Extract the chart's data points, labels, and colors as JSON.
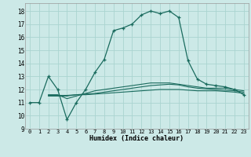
{
  "xlabel": "Humidex (Indice chaleur)",
  "xlim": [
    -0.5,
    23.5
  ],
  "ylim": [
    9,
    18.6
  ],
  "yticks": [
    9,
    10,
    11,
    12,
    13,
    14,
    15,
    16,
    17,
    18
  ],
  "xticks": [
    0,
    1,
    2,
    3,
    4,
    5,
    6,
    7,
    8,
    9,
    10,
    11,
    12,
    13,
    14,
    15,
    16,
    17,
    18,
    19,
    20,
    21,
    22,
    23
  ],
  "bg_color": "#cce9e7",
  "grid_color": "#aad4d0",
  "line_color": "#1a6b5e",
  "line1_x": [
    0,
    1,
    2,
    3,
    4,
    5,
    6,
    7,
    8,
    9,
    10,
    11,
    12,
    13,
    14,
    15,
    16,
    17,
    18,
    19,
    20,
    21,
    22,
    23
  ],
  "line1_y": [
    11,
    11,
    13,
    12,
    9.7,
    11,
    12,
    13.3,
    14.3,
    16.5,
    16.7,
    17,
    17.7,
    18,
    17.8,
    18,
    17.5,
    14.2,
    12.8,
    12.4,
    12.3,
    12.2,
    12.0,
    11.6
  ],
  "line2_x": [
    2,
    3,
    4,
    5,
    6,
    7,
    8,
    9,
    10,
    11,
    12,
    13,
    14,
    15,
    16,
    17,
    18,
    19,
    20,
    21,
    22,
    23
  ],
  "line2_y": [
    11.6,
    11.6,
    11.3,
    11.5,
    11.7,
    11.9,
    12.0,
    12.1,
    12.2,
    12.3,
    12.4,
    12.5,
    12.5,
    12.5,
    12.4,
    12.3,
    12.2,
    12.1,
    12.1,
    12.1,
    12.0,
    11.9
  ],
  "line3_x": [
    2,
    3,
    4,
    5,
    6,
    7,
    8,
    9,
    10,
    11,
    12,
    13,
    14,
    15,
    16,
    17,
    18,
    19,
    20,
    21,
    22,
    23
  ],
  "line3_y": [
    11.5,
    11.5,
    11.5,
    11.6,
    11.6,
    11.65,
    11.7,
    11.75,
    11.8,
    11.85,
    11.9,
    11.95,
    12.0,
    12.0,
    12.0,
    11.95,
    11.9,
    11.9,
    11.9,
    11.85,
    11.8,
    11.7
  ],
  "line4_x": [
    2,
    3,
    4,
    5,
    6,
    7,
    8,
    9,
    10,
    11,
    12,
    13,
    14,
    15,
    16,
    17,
    18,
    19,
    20,
    21,
    22,
    23
  ],
  "line4_y": [
    11.55,
    11.55,
    11.55,
    11.6,
    11.65,
    11.7,
    11.8,
    11.9,
    12.0,
    12.1,
    12.2,
    12.3,
    12.35,
    12.4,
    12.35,
    12.2,
    12.1,
    12.05,
    12.0,
    11.95,
    11.9,
    11.8
  ]
}
